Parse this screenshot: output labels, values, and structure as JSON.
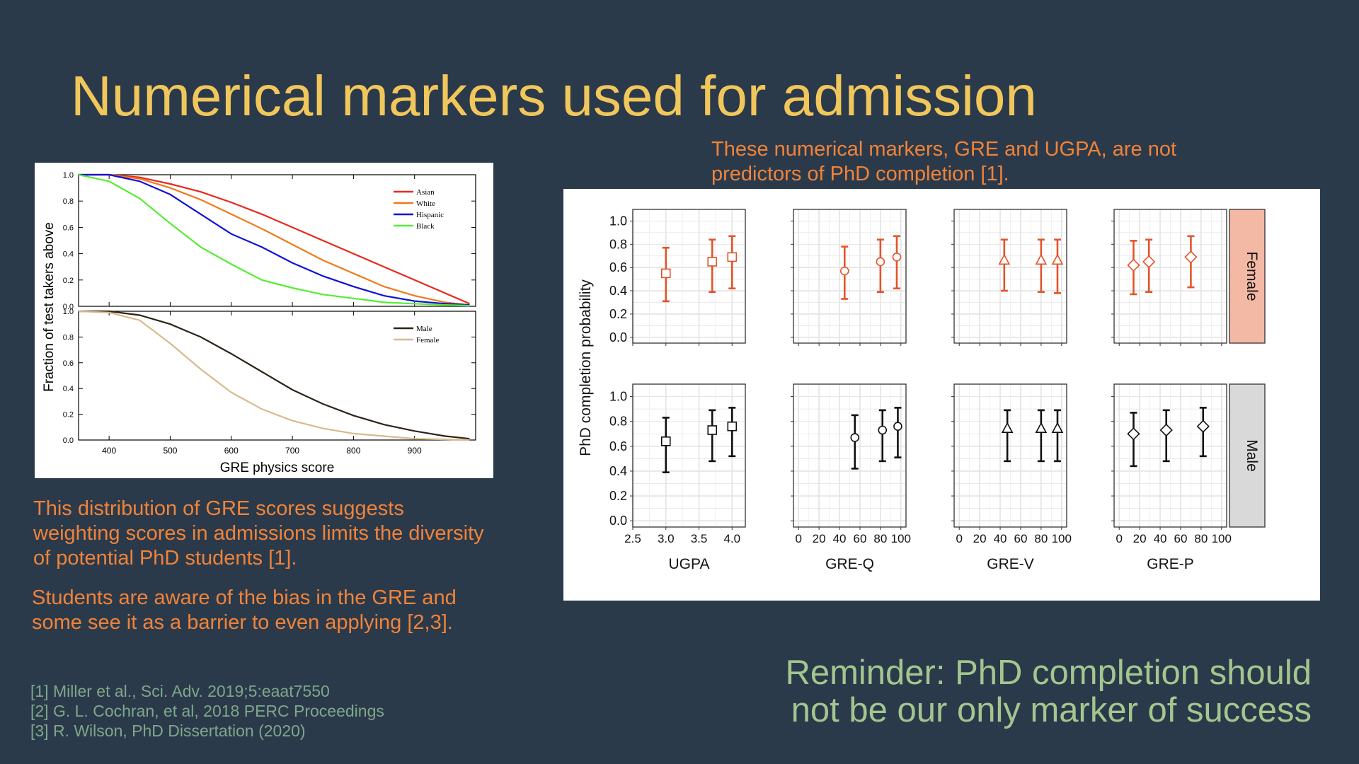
{
  "slide": {
    "title": "Numerical markers used for admission",
    "top_note": "These numerical markers, GRE and UGPA, are not predictors of PhD completion [1].",
    "note1": "This distribution of GRE scores suggests weighting scores in admissions limits the diversity of potential PhD students [1].",
    "note2": "Students are aware of the bias in the GRE and some see it as a barrier to even applying [2,3].",
    "references": [
      "[1] Miller et al., Sci. Adv. 2019;5:eaat7550",
      "[2] G. L. Cochran, et al, 2018 PERC Proceedings",
      "[3] R. Wilson, PhD Dissertation (2020)"
    ],
    "reminder_line1": "Reminder: PhD completion should",
    "reminder_line2": "not be our only marker of success"
  },
  "colors": {
    "asian": "#e8281c",
    "white": "#ef7a1a",
    "hispanic": "#1010d8",
    "black": "#55ee33",
    "male": "#2d2418",
    "female": "#d8b98c",
    "orange_mark": "#e2542a",
    "black_mark": "#111111",
    "female_strip": "#f4b9a5",
    "male_strip": "#d9d9d9"
  },
  "chart_data": [
    {
      "type": "line",
      "xlabel": "GRE physics score",
      "ylabel": "Fraction of test takers above",
      "xlim": [
        350,
        1000
      ],
      "ylim": [
        0,
        1
      ],
      "x_ticks": [
        "400",
        "500",
        "600",
        "700",
        "800",
        "900"
      ],
      "y_ticks": [
        "0.0",
        "0.2",
        "0.4",
        "0.6",
        "0.8",
        "1.0"
      ],
      "panels": [
        {
          "legend": "top-right",
          "series": [
            {
              "name": "Asian",
              "color_key": "asian",
              "x": [
                350,
                400,
                450,
                500,
                550,
                600,
                650,
                700,
                750,
                800,
                850,
                900,
                950,
                990
              ],
              "y": [
                1.0,
                1.0,
                0.98,
                0.93,
                0.87,
                0.79,
                0.7,
                0.6,
                0.5,
                0.4,
                0.3,
                0.2,
                0.1,
                0.02
              ]
            },
            {
              "name": "White",
              "color_key": "white",
              "x": [
                350,
                400,
                450,
                500,
                550,
                600,
                650,
                700,
                750,
                800,
                850,
                900,
                950,
                990
              ],
              "y": [
                1.0,
                1.0,
                0.97,
                0.9,
                0.81,
                0.7,
                0.59,
                0.47,
                0.35,
                0.25,
                0.15,
                0.08,
                0.03,
                0.01
              ]
            },
            {
              "name": "Hispanic",
              "color_key": "hispanic",
              "x": [
                350,
                400,
                450,
                500,
                550,
                600,
                650,
                700,
                750,
                800,
                850,
                900,
                950,
                990
              ],
              "y": [
                1.0,
                1.0,
                0.95,
                0.85,
                0.7,
                0.55,
                0.45,
                0.33,
                0.23,
                0.15,
                0.08,
                0.04,
                0.02,
                0.01
              ]
            },
            {
              "name": "Black",
              "color_key": "black",
              "x": [
                350,
                400,
                450,
                500,
                550,
                600,
                650,
                700,
                750,
                800,
                850,
                900,
                950,
                990
              ],
              "y": [
                1.0,
                0.95,
                0.82,
                0.63,
                0.45,
                0.32,
                0.2,
                0.14,
                0.09,
                0.06,
                0.03,
                0.02,
                0.01,
                0.005
              ]
            }
          ]
        },
        {
          "legend": "top-right",
          "series": [
            {
              "name": "Male",
              "color_key": "male",
              "x": [
                350,
                400,
                450,
                500,
                550,
                600,
                650,
                700,
                750,
                800,
                850,
                900,
                950,
                990
              ],
              "y": [
                1.0,
                1.0,
                0.97,
                0.9,
                0.8,
                0.67,
                0.53,
                0.39,
                0.28,
                0.19,
                0.12,
                0.07,
                0.03,
                0.01
              ]
            },
            {
              "name": "Female",
              "color_key": "female",
              "x": [
                350,
                400,
                450,
                500,
                550,
                600,
                650,
                700,
                750,
                800,
                850,
                900,
                950,
                990
              ],
              "y": [
                1.0,
                0.99,
                0.93,
                0.75,
                0.55,
                0.37,
                0.24,
                0.15,
                0.09,
                0.05,
                0.03,
                0.01,
                0.005,
                0.0
              ]
            }
          ]
        }
      ]
    },
    {
      "type": "scatter",
      "ylabel": "PhD completion probability",
      "y_ticks": [
        "0.0",
        "0.2",
        "0.4",
        "0.6",
        "0.8",
        "1.0"
      ],
      "female_y_ticks": [
        "0.0",
        "0.2",
        "0.4",
        "0.6",
        "0.8",
        "1.0"
      ],
      "male_y_ticks": [
        "0.0",
        "0.2",
        "0.4",
        "0.6",
        "0.8",
        "1.0"
      ],
      "row_labels": [
        "Female",
        "Male"
      ],
      "columns": [
        {
          "label": "UGPA",
          "xlim": [
            2.5,
            4.2
          ],
          "x_ticks": [
            "2.5",
            "3.0",
            "3.5",
            "4.0"
          ],
          "x_tick_values": [
            2.5,
            3.0,
            3.5,
            4.0
          ],
          "marker": "square",
          "female": [
            {
              "x": 3.0,
              "y": 0.55,
              "lo": 0.31,
              "hi": 0.77
            },
            {
              "x": 3.7,
              "y": 0.65,
              "lo": 0.39,
              "hi": 0.84
            },
            {
              "x": 4.0,
              "y": 0.69,
              "lo": 0.42,
              "hi": 0.87
            }
          ],
          "male": [
            {
              "x": 3.0,
              "y": 0.64,
              "lo": 0.39,
              "hi": 0.83
            },
            {
              "x": 3.7,
              "y": 0.73,
              "lo": 0.48,
              "hi": 0.89
            },
            {
              "x": 4.0,
              "y": 0.76,
              "lo": 0.52,
              "hi": 0.91
            }
          ]
        },
        {
          "label": "GRE-Q",
          "xlim": [
            -5,
            105
          ],
          "x_ticks": [
            "0",
            "20",
            "40",
            "60",
            "80",
            "100"
          ],
          "x_tick_values": [
            0,
            20,
            40,
            60,
            80,
            100
          ],
          "marker": "circle",
          "female": [
            {
              "x": 45,
              "y": 0.57,
              "lo": 0.33,
              "hi": 0.78
            },
            {
              "x": 80,
              "y": 0.65,
              "lo": 0.39,
              "hi": 0.84
            },
            {
              "x": 96,
              "y": 0.69,
              "lo": 0.42,
              "hi": 0.87
            }
          ],
          "male": [
            {
              "x": 55,
              "y": 0.67,
              "lo": 0.42,
              "hi": 0.85
            },
            {
              "x": 82,
              "y": 0.73,
              "lo": 0.48,
              "hi": 0.89
            },
            {
              "x": 97,
              "y": 0.76,
              "lo": 0.51,
              "hi": 0.91
            }
          ]
        },
        {
          "label": "GRE-V",
          "xlim": [
            -5,
            105
          ],
          "x_ticks": [
            "0",
            "20",
            "40",
            "60",
            "80",
            "100"
          ],
          "x_tick_values": [
            0,
            20,
            40,
            60,
            80,
            100
          ],
          "marker": "triangle",
          "female": [
            {
              "x": 44,
              "y": 0.66,
              "lo": 0.4,
              "hi": 0.84
            },
            {
              "x": 80,
              "y": 0.66,
              "lo": 0.39,
              "hi": 0.84
            },
            {
              "x": 96,
              "y": 0.66,
              "lo": 0.38,
              "hi": 0.84
            }
          ],
          "male": [
            {
              "x": 47,
              "y": 0.74,
              "lo": 0.48,
              "hi": 0.89
            },
            {
              "x": 80,
              "y": 0.74,
              "lo": 0.48,
              "hi": 0.89
            },
            {
              "x": 96,
              "y": 0.74,
              "lo": 0.48,
              "hi": 0.89
            }
          ]
        },
        {
          "label": "GRE-P",
          "xlim": [
            -5,
            105
          ],
          "x_ticks": [
            "0",
            "20",
            "40",
            "60",
            "80",
            "100"
          ],
          "x_tick_values": [
            0,
            20,
            40,
            60,
            80,
            100
          ],
          "marker": "diamond",
          "female": [
            {
              "x": 14,
              "y": 0.62,
              "lo": 0.37,
              "hi": 0.83
            },
            {
              "x": 29,
              "y": 0.65,
              "lo": 0.39,
              "hi": 0.84
            },
            {
              "x": 70,
              "y": 0.69,
              "lo": 0.43,
              "hi": 0.87
            }
          ],
          "male": [
            {
              "x": 14,
              "y": 0.7,
              "lo": 0.44,
              "hi": 0.87
            },
            {
              "x": 46,
              "y": 0.73,
              "lo": 0.48,
              "hi": 0.89
            },
            {
              "x": 82,
              "y": 0.76,
              "lo": 0.52,
              "hi": 0.91
            }
          ]
        }
      ]
    }
  ]
}
